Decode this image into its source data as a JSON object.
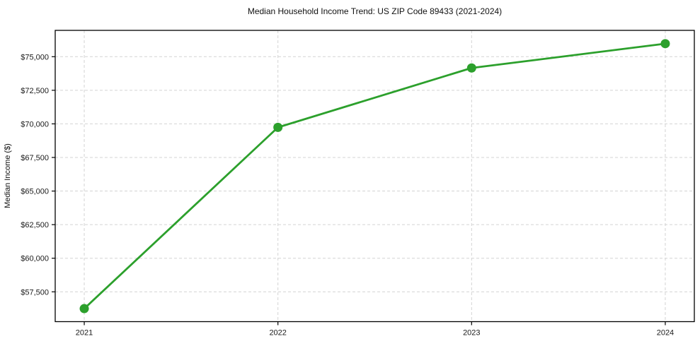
{
  "chart_data": {
    "type": "line",
    "title": "Median Household Income Trend: US ZIP Code 89433 (2021-2024)",
    "xlabel": "",
    "ylabel": "Median Income ($)",
    "x": [
      2021,
      2022,
      2023,
      2024
    ],
    "series": [
      {
        "name": "Median Household Income",
        "values": [
          56250,
          69740,
          74160,
          75970
        ]
      }
    ],
    "xticks": [
      {
        "value": 2021,
        "label": "2021"
      },
      {
        "value": 2022,
        "label": "2022"
      },
      {
        "value": 2023,
        "label": "2023"
      },
      {
        "value": 2024,
        "label": "2024"
      }
    ],
    "yticks": [
      {
        "value": 57500,
        "label": "$57,500"
      },
      {
        "value": 60000,
        "label": "$60,000"
      },
      {
        "value": 62500,
        "label": "$62,500"
      },
      {
        "value": 65000,
        "label": "$65,000"
      },
      {
        "value": 67500,
        "label": "$67,500"
      },
      {
        "value": 70000,
        "label": "$70,000"
      },
      {
        "value": 72500,
        "label": "$72,500"
      },
      {
        "value": 75000,
        "label": "$75,000"
      }
    ],
    "xlim": [
      2020.85,
      2024.15
    ],
    "ylim": [
      55280,
      76960
    ],
    "grid": true,
    "legend": false,
    "colors": {
      "line": "#2ca02c",
      "marker": "#2ca02c",
      "grid": "#d3d3d3",
      "axis_border": "#000000",
      "background": "#ffffff"
    },
    "line_width": 2.8,
    "marker_radius": 6.5
  }
}
